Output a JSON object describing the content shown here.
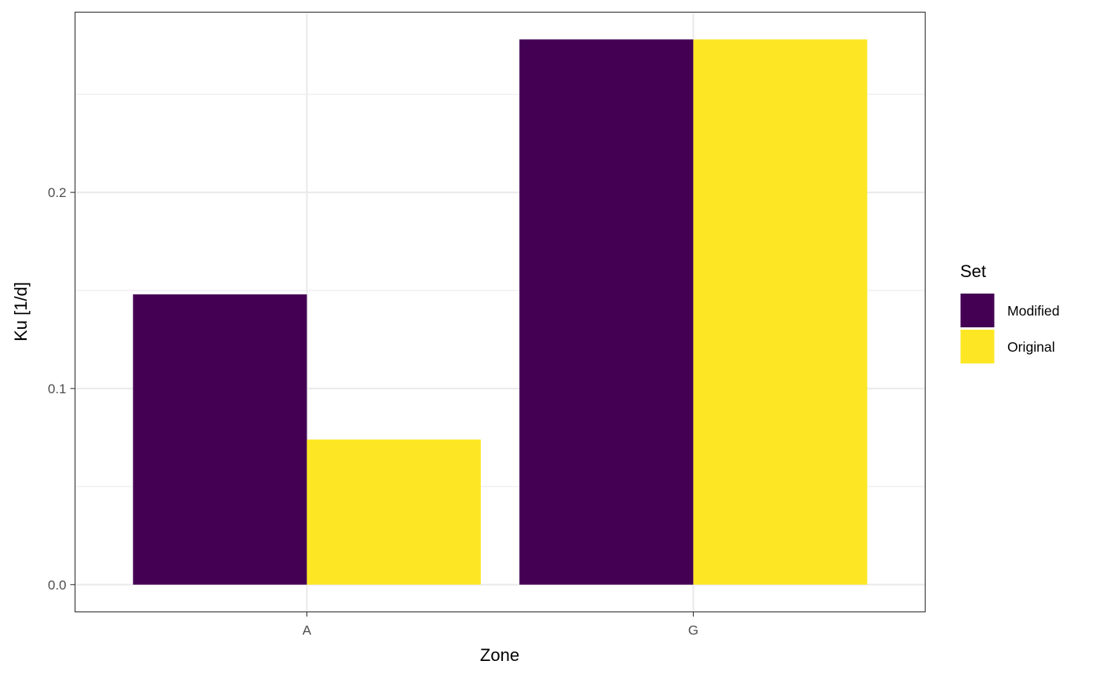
{
  "chart_data": {
    "type": "bar",
    "title": "",
    "xlabel": "Zone",
    "ylabel": "Ku [1/d]",
    "categories": [
      "A",
      "G"
    ],
    "series": [
      {
        "name": "Modified",
        "color": "#440154",
        "values": [
          0.148,
          0.278
        ]
      },
      {
        "name": "Original",
        "color": "#FDE725",
        "values": [
          0.074,
          0.278
        ]
      }
    ],
    "ylim": [
      -0.0139,
      0.2919
    ],
    "yticks": [
      0.0,
      0.1,
      0.2
    ],
    "ytick_labels": [
      "0.0",
      "0.1",
      "0.2"
    ],
    "minor_yticks": [
      0.05,
      0.15,
      0.25
    ],
    "grid": true,
    "legend": {
      "title": "Set",
      "position": "right"
    }
  }
}
